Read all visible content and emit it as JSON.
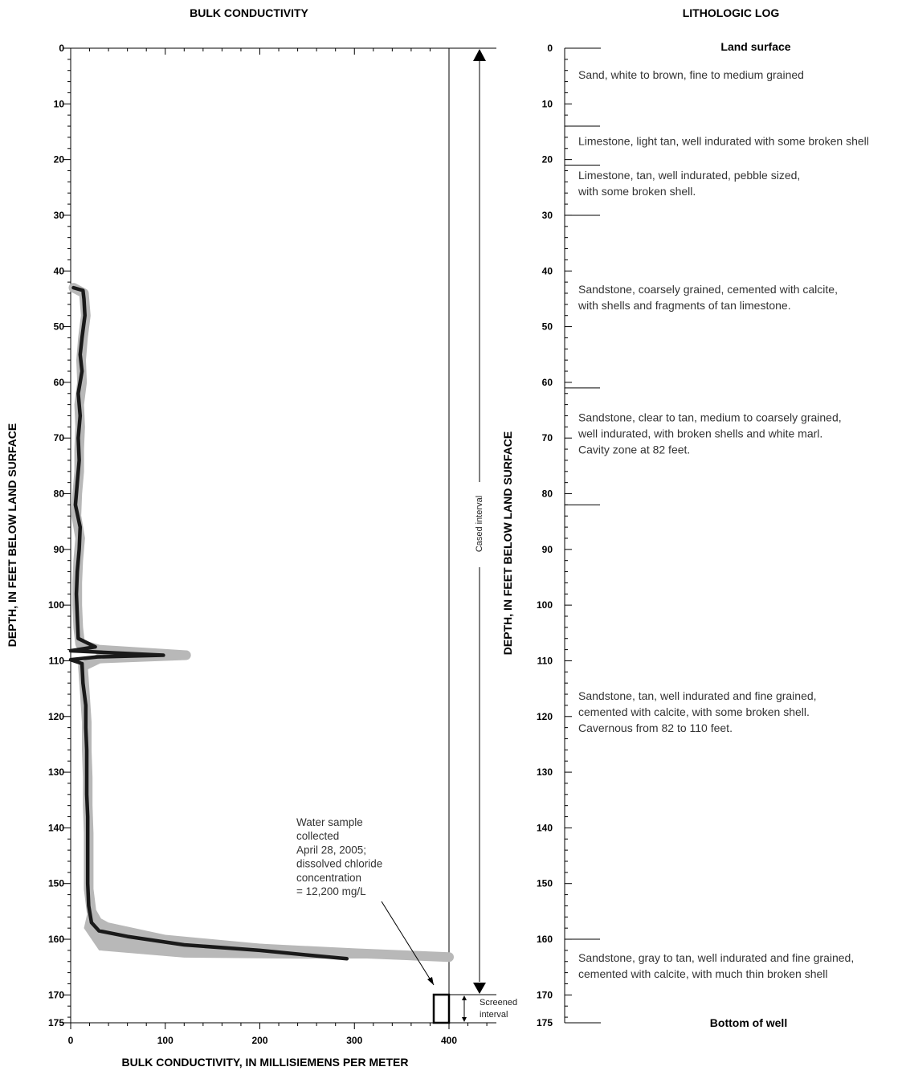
{
  "chart_data": [
    {
      "type": "line",
      "title": "BULK CONDUCTIVITY",
      "xlabel": "BULK CONDUCTIVITY, IN MILLISIEMENS PER METER",
      "ylabel": "DEPTH, IN FEET BELOW LAND SURFACE",
      "xlim": [
        0,
        450
      ],
      "ylim": [
        0,
        175
      ],
      "y_inverted": true,
      "x_ticks": [
        "0",
        "100",
        "200",
        "300",
        "400"
      ],
      "y_ticks": [
        "0",
        "10",
        "20",
        "30",
        "40",
        "50",
        "60",
        "70",
        "80",
        "90",
        "100",
        "110",
        "120",
        "130",
        "140",
        "150",
        "160",
        "170",
        "175"
      ],
      "grid": false,
      "series": [
        {
          "style": "thick black line",
          "color": "#1a1a1a",
          "points": [
            [
              3,
              43
            ],
            [
              13,
              43.5
            ],
            [
              14,
              45
            ],
            [
              15,
              48
            ],
            [
              12,
              52
            ],
            [
              10,
              55
            ],
            [
              12,
              58
            ],
            [
              8,
              62
            ],
            [
              10,
              66
            ],
            [
              8,
              70
            ],
            [
              9,
              74
            ],
            [
              7,
              78
            ],
            [
              5,
              82
            ],
            [
              10,
              86
            ],
            [
              9,
              90
            ],
            [
              7,
              94
            ],
            [
              6,
              98
            ],
            [
              7,
              102
            ],
            [
              8,
              106
            ],
            [
              26,
              107.5
            ],
            [
              0,
              108.2
            ],
            [
              98,
              109
            ],
            [
              28,
              109.3
            ],
            [
              0,
              109.8
            ],
            [
              12,
              110.5
            ],
            [
              13,
              114
            ],
            [
              16,
              118
            ],
            [
              16,
              122
            ],
            [
              17,
              126
            ],
            [
              17,
              130
            ],
            [
              17,
              134
            ],
            [
              18,
              138
            ],
            [
              18,
              142
            ],
            [
              18,
              146
            ],
            [
              18,
              150
            ],
            [
              19,
              154
            ],
            [
              22,
              157
            ],
            [
              30,
              158.5
            ],
            [
              60,
              159.5
            ],
            [
              120,
              161
            ],
            [
              200,
              162
            ],
            [
              260,
              163
            ],
            [
              292,
              163.5
            ]
          ]
        },
        {
          "style": "thick gray envelope",
          "color": "#b8b8b8",
          "points": [
            [
              3,
              43
            ],
            [
              14,
              44
            ],
            [
              16,
              48
            ],
            [
              13,
              52
            ],
            [
              11,
              56
            ],
            [
              12,
              60
            ],
            [
              9,
              64
            ],
            [
              10,
              68
            ],
            [
              9,
              72
            ],
            [
              9,
              76
            ],
            [
              7,
              80
            ],
            [
              6,
              84
            ],
            [
              10,
              88
            ],
            [
              8,
              92
            ],
            [
              7,
              96
            ],
            [
              7,
              100
            ],
            [
              8,
              104
            ],
            [
              10,
              107
            ],
            [
              30,
              108
            ],
            [
              122,
              109
            ],
            [
              30,
              109.6
            ],
            [
              13,
              111
            ],
            [
              15,
              116
            ],
            [
              17,
              121
            ],
            [
              17,
              126
            ],
            [
              18,
              131
            ],
            [
              18,
              136
            ],
            [
              19,
              141
            ],
            [
              19,
              146
            ],
            [
              19,
              151
            ],
            [
              22,
              155
            ],
            [
              32,
              158
            ],
            [
              80,
              160
            ],
            [
              180,
              161.5
            ],
            [
              300,
              162.5
            ],
            [
              400,
              163.2
            ]
          ]
        }
      ],
      "annotations": {
        "cased_interval_label": "Cased interval",
        "screened_interval_label_1": "Screened",
        "screened_interval_label_2": "interval",
        "water_sample_lines": [
          "Water sample",
          "collected",
          "April 28, 2005;",
          "dissolved chloride",
          "concentration",
          "= 12,200 mg/L"
        ]
      }
    }
  ],
  "lithologic_log": {
    "title": "LITHOLOGIC LOG",
    "ylabel": "DEPTH, IN FEET BELOW LAND SURFACE",
    "ylim": [
      0,
      175
    ],
    "y_ticks": [
      "0",
      "10",
      "20",
      "30",
      "40",
      "50",
      "60",
      "70",
      "80",
      "90",
      "100",
      "110",
      "120",
      "130",
      "140",
      "150",
      "160",
      "170",
      "175"
    ],
    "top_label": "Land surface",
    "bottom_label": "Bottom of well",
    "contacts_ft": [
      14,
      21,
      30,
      61,
      82,
      160
    ],
    "units": [
      {
        "depth_ft": 5.5,
        "lines": [
          "Sand, white to brown, fine to medium grained"
        ]
      },
      {
        "depth_ft": 17.4,
        "lines": [
          "Limestone, light tan, well indurated with some broken shell"
        ]
      },
      {
        "depth_ft": 23.5,
        "lines": [
          "Limestone, tan, well indurated, pebble sized,",
          "with some broken shell."
        ]
      },
      {
        "depth_ft": 44,
        "lines": [
          "Sandstone, coarsely grained, cemented with calcite,",
          "with shells and fragments of tan limestone."
        ]
      },
      {
        "depth_ft": 67,
        "lines": [
          "Sandstone, clear to tan, medium to coarsely grained,",
          "well indurated, with broken shells and white marl.",
          "Cavity zone at 82 feet."
        ]
      },
      {
        "depth_ft": 117,
        "lines": [
          "Sandstone, tan, well indurated and fine grained,",
          "cemented with calcite, with some broken shell.",
          "Cavernous from 82 to 110 feet."
        ]
      },
      {
        "depth_ft": 164,
        "lines": [
          "Sandstone, gray to tan, well indurated and fine grained,",
          "cemented with calcite, with much thin broken shell"
        ]
      }
    ]
  }
}
